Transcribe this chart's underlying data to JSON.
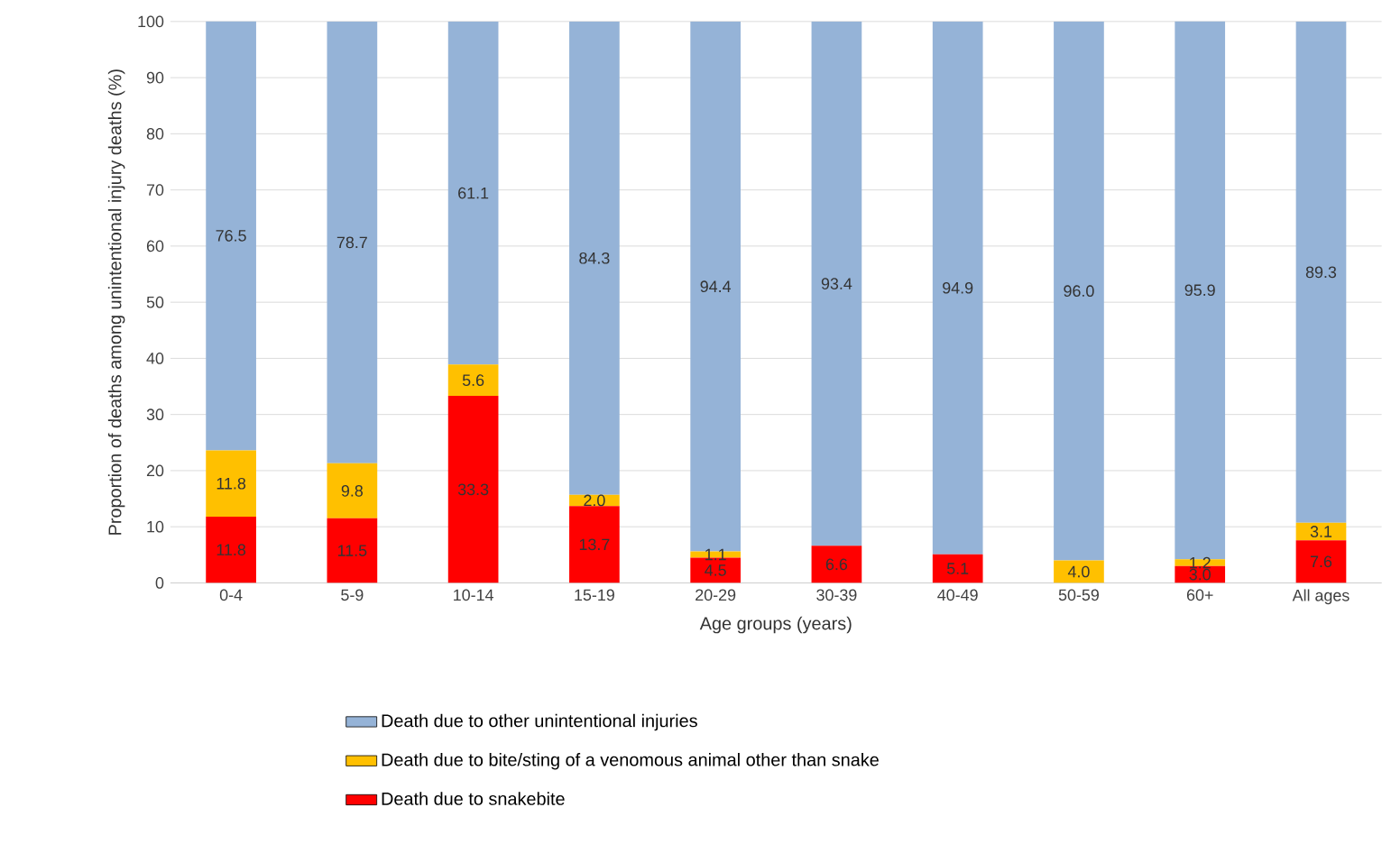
{
  "chart_data": {
    "type": "bar",
    "stacked": true,
    "xlabel": "Age groups (years)",
    "ylabel": "Proportion of deaths among unintentional injury deaths (%)",
    "categories": [
      "0-4",
      "5-9",
      "10-14",
      "15-19",
      "20-29",
      "30-39",
      "40-49",
      "50-59",
      "60+",
      "All ages"
    ],
    "series": [
      {
        "name": "Death due to snakebite",
        "color": "#ff0000",
        "values": [
          11.8,
          11.5,
          33.3,
          13.7,
          4.5,
          6.6,
          5.1,
          null,
          3.0,
          7.6
        ],
        "value_labels": [
          "11.8",
          "11.5",
          "33.3",
          "13.7",
          "4.5",
          "6.6",
          "5.1",
          null,
          "3.0",
          "7.6"
        ]
      },
      {
        "name": "Death due to bite/sting of a venomous animal other than snake",
        "color": "#ffc000",
        "values": [
          11.8,
          9.8,
          5.6,
          2.0,
          1.1,
          null,
          null,
          4.0,
          1.2,
          3.1
        ],
        "value_labels": [
          "11.8",
          "9.8",
          "5.6",
          "2.0",
          "1.1",
          null,
          null,
          "4.0",
          "1.2",
          "3.1"
        ]
      },
      {
        "name": "Death due to other unintentional injuries",
        "color": "#95b3d7",
        "values": [
          76.5,
          78.7,
          61.1,
          84.3,
          94.4,
          93.4,
          94.9,
          96.0,
          95.9,
          89.3
        ],
        "value_labels": [
          "76.5",
          "78.7",
          "61.1",
          "84.3",
          "94.4",
          "93.4",
          "94.9",
          "96.0",
          "95.9",
          "89.3"
        ]
      }
    ],
    "ylim": [
      0,
      100
    ],
    "yticks": [
      0,
      10,
      20,
      30,
      40,
      50,
      60,
      70,
      80,
      90,
      100
    ],
    "grid": "y",
    "legend": "bottom"
  }
}
